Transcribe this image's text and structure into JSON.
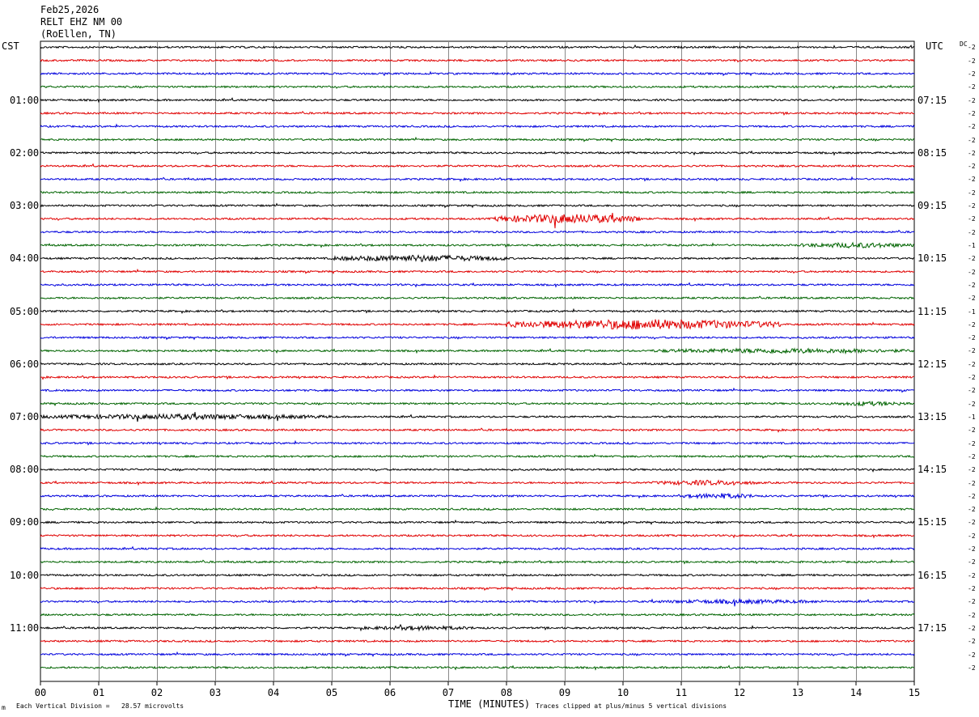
{
  "header": {
    "date": "Feb25,2026",
    "station": "RELT EHZ NM 00",
    "location": "(RoEllen, TN)"
  },
  "left_tz": "CST",
  "right_tz": "UTC",
  "dc_label": "DC",
  "footer": {
    "scale_note": "Each Vertical Division =   28.57 microvolts",
    "xlabel": "TIME (MINUTES)",
    "clip_note": "Traces clipped at plus/minus 5 vertical divisions",
    "corner_mark": "m"
  },
  "colors": {
    "trace_cycle": [
      "#000000",
      "#e00000",
      "#0000dd",
      "#006400"
    ],
    "grid": "#000000"
  },
  "chart_data": {
    "type": "line",
    "title": "",
    "xlabel": "TIME (MINUTES)",
    "ylabel": "",
    "xlim": [
      0,
      15
    ],
    "x_ticks": [
      "00",
      "01",
      "02",
      "03",
      "04",
      "05",
      "06",
      "07",
      "08",
      "09",
      "10",
      "11",
      "12",
      "13",
      "14",
      "15"
    ],
    "trace_count": 48,
    "minutes_per_trace": 15,
    "left_time_labels": [
      "01:00",
      "02:00",
      "03:00",
      "04:00",
      "05:00",
      "06:00",
      "07:00",
      "08:00",
      "09:00",
      "10:00",
      "11:00"
    ],
    "right_time_labels": [
      "07:15",
      "08:15",
      "09:15",
      "10:15",
      "11:15",
      "12:15",
      "13:15",
      "14:15",
      "15:15",
      "16:15",
      "17:15"
    ],
    "right_offsets": [
      "-2",
      "-2",
      "-2",
      "-2",
      "-2",
      "-2",
      "-2",
      "-2",
      "-2",
      "-2",
      "-2",
      "-2",
      "-2",
      "-2",
      "-2",
      "-1",
      "-2",
      "-2",
      "-2",
      "-2",
      "-1",
      "-2",
      "-2",
      "-2",
      "-2",
      "-2",
      "-2",
      "-2",
      "-1",
      "-2",
      "-2",
      "-2",
      "-2",
      "-2",
      "-2",
      "-2",
      "-2",
      "-2",
      "-2",
      "-2",
      "-2",
      "-2",
      "-2",
      "-2",
      "-2",
      "-2",
      "-2",
      "-2"
    ],
    "bursts": [
      {
        "trace": 13,
        "start": 7.8,
        "end": 10.3,
        "amplitude": 2.8
      },
      {
        "trace": 16,
        "start": 5.0,
        "end": 8.0,
        "amplitude": 2.0
      },
      {
        "trace": 21,
        "start": 8.0,
        "end": 12.7,
        "amplitude": 3.0
      },
      {
        "trace": 15,
        "start": 13.0,
        "end": 15.0,
        "amplitude": 1.6
      },
      {
        "trace": 23,
        "start": 10.5,
        "end": 15.0,
        "amplitude": 1.5
      },
      {
        "trace": 27,
        "start": 13.5,
        "end": 15.0,
        "amplitude": 1.3
      },
      {
        "trace": 28,
        "start": 0.0,
        "end": 5.0,
        "amplitude": 1.6
      },
      {
        "trace": 33,
        "start": 10.5,
        "end": 12.3,
        "amplitude": 1.5
      },
      {
        "trace": 34,
        "start": 11.0,
        "end": 12.3,
        "amplitude": 1.6
      },
      {
        "trace": 42,
        "start": 10.5,
        "end": 13.5,
        "amplitude": 1.3
      },
      {
        "trace": 44,
        "start": 5.5,
        "end": 7.5,
        "amplitude": 1.3
      }
    ]
  }
}
